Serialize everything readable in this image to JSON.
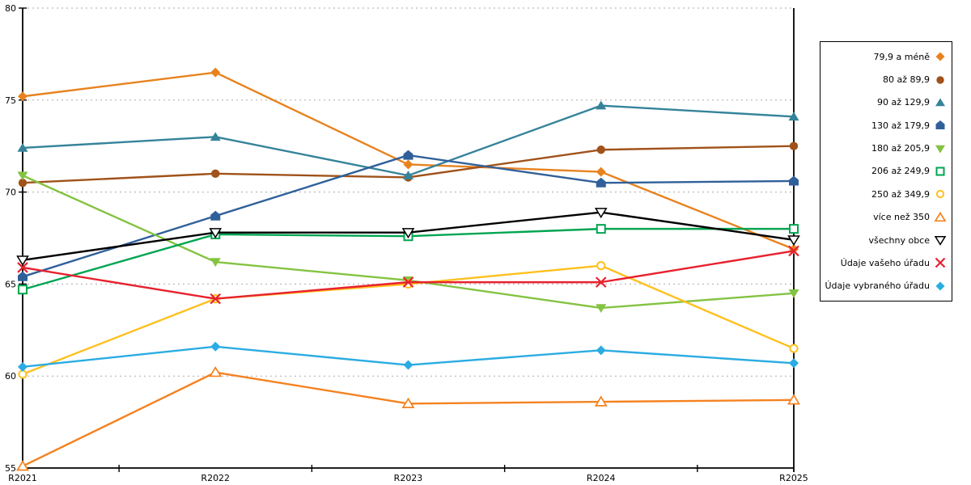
{
  "chart_data": {
    "type": "line",
    "title": "",
    "xlabel": "",
    "ylabel": "",
    "x_categories": [
      "R2021",
      "R2022",
      "R2023",
      "R2024",
      "R2025"
    ],
    "y_ticks": [
      80,
      75,
      70,
      65,
      60,
      55
    ],
    "ylim": [
      55,
      80
    ],
    "grid": "horizontal dashed at 60,65,70,75,80",
    "legend_position": "right",
    "series": [
      {
        "name": "79,9 a méně",
        "marker": "diamond",
        "filled": true,
        "color": "#E8821E",
        "values": [
          75.2,
          76.5,
          71.5,
          71.1,
          66.9
        ]
      },
      {
        "name": "80 až 89,9",
        "marker": "circle",
        "filled": true,
        "color": "#A0521A",
        "values": [
          70.5,
          71.0,
          70.8,
          72.3,
          72.5
        ]
      },
      {
        "name": "90 až 129,9",
        "marker": "triangle-up",
        "filled": true,
        "color": "#35839A",
        "values": [
          72.4,
          73.0,
          70.9,
          74.7,
          74.1
        ]
      },
      {
        "name": "130 až 179,9",
        "marker": "pentagon",
        "filled": true,
        "color": "#30609A",
        "values": [
          65.4,
          68.7,
          72.0,
          70.5,
          70.6
        ]
      },
      {
        "name": "180 až 205,9",
        "marker": "triangle-down",
        "filled": true,
        "color": "#84C341",
        "values": [
          70.9,
          66.2,
          65.2,
          63.7,
          64.5
        ]
      },
      {
        "name": "206 až 249,9",
        "marker": "square",
        "filled": false,
        "color": "#00A551",
        "values": [
          64.7,
          67.7,
          67.6,
          68.0,
          68.0
        ]
      },
      {
        "name": "250 až 349,9",
        "marker": "circle",
        "filled": false,
        "color": "#FFC01E",
        "values": [
          60.1,
          64.2,
          65.0,
          66.0,
          61.5
        ]
      },
      {
        "name": "více než 350",
        "marker": "triangle-up",
        "filled": false,
        "color": "#F58220",
        "values": [
          55.1,
          60.2,
          58.5,
          58.6,
          58.7
        ]
      },
      {
        "name": "všechny obce",
        "marker": "triangle-down",
        "filled": false,
        "color": "#000000",
        "values": [
          66.3,
          67.8,
          67.8,
          68.9,
          67.4
        ]
      },
      {
        "name": "Údaje vašeho úřadu",
        "marker": "x",
        "filled": false,
        "color": "#E8212E",
        "values": [
          65.9,
          64.2,
          65.1,
          65.1,
          66.8
        ]
      },
      {
        "name": "Údaje vybraného úřadu",
        "marker": "diamond",
        "filled": true,
        "color": "#2BACE2",
        "values": [
          60.5,
          61.6,
          60.6,
          61.4,
          60.7
        ]
      }
    ],
    "style": {
      "axis_color": "#000000",
      "gridline_color": "#aaaaaa",
      "legend_border_color": "#000000",
      "background": "#ffffff"
    }
  }
}
